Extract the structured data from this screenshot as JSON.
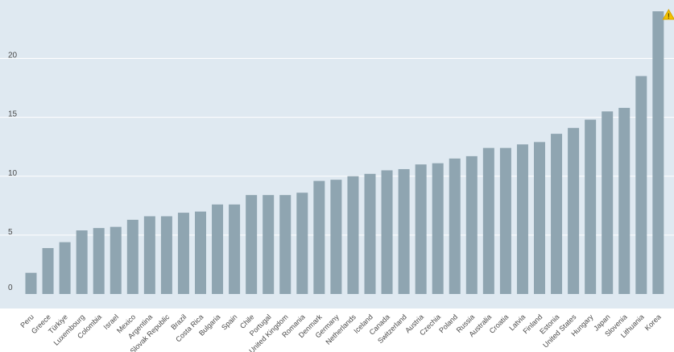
{
  "chart_data": {
    "type": "bar",
    "title": "",
    "xlabel": "",
    "ylabel": "",
    "ylim": [
      0,
      24
    ],
    "yticks": [
      0,
      5,
      10,
      15,
      20
    ],
    "grid": true,
    "legend": "none",
    "colors": {
      "plot_background": "#dfe9f1",
      "bar": "#8fa5b1",
      "gridline": "#ffffff",
      "warning": "#f2c200"
    },
    "annotations": [
      {
        "category": "Korea",
        "icon": "warning-icon"
      }
    ],
    "categories": [
      "Peru",
      "Greece",
      "Türkiye",
      "Luxembourg",
      "Colombia",
      "Israel",
      "Mexico",
      "Argentina",
      "Slovak Republic",
      "Brazil",
      "Costa Rica",
      "Bulgaria",
      "Spain",
      "Chile",
      "Portugal",
      "United Kingdom",
      "Romania",
      "Denmark",
      "Germany",
      "Netherlands",
      "Iceland",
      "Canada",
      "Switzerland",
      "Austria",
      "Czechia",
      "Poland",
      "Russia",
      "Australia",
      "Croatia",
      "Latvia",
      "Finland",
      "Estonia",
      "United States",
      "Hungary",
      "Japan",
      "Slovenia",
      "Lithuania",
      "Korea"
    ],
    "values": [
      1.8,
      3.9,
      4.4,
      5.4,
      5.6,
      5.7,
      6.3,
      6.6,
      6.6,
      6.9,
      7.0,
      7.6,
      7.6,
      8.4,
      8.4,
      8.4,
      8.6,
      9.6,
      9.7,
      10.0,
      10.2,
      10.5,
      10.6,
      11.0,
      11.1,
      11.5,
      11.7,
      12.4,
      12.4,
      12.7,
      12.9,
      13.6,
      14.1,
      14.8,
      15.5,
      15.8,
      18.5,
      24.0
    ]
  }
}
